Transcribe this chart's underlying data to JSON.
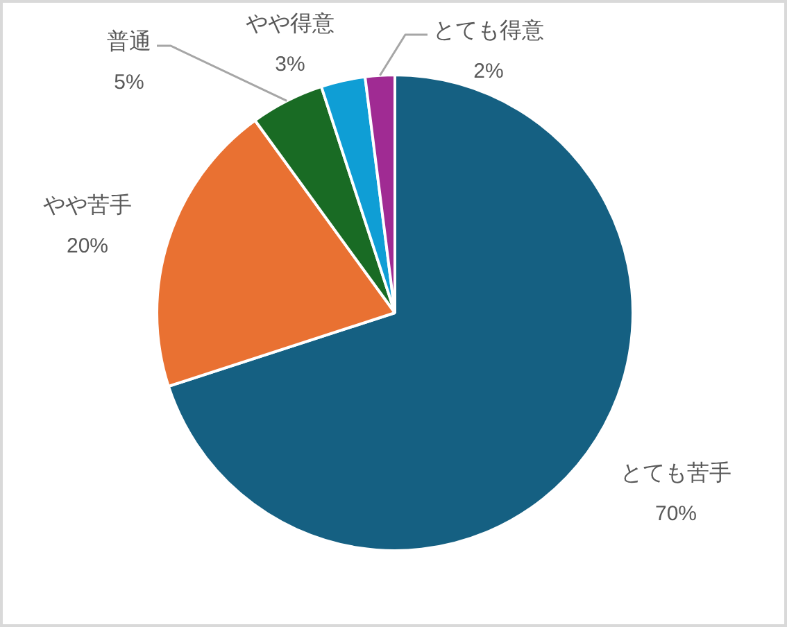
{
  "chart_data": {
    "type": "pie",
    "categories": [
      "とても苦手",
      "やや苦手",
      "普通",
      "やや得意",
      "とても得意"
    ],
    "values": [
      70,
      20,
      5,
      3,
      2
    ],
    "colors": [
      "#156082",
      "#e97132",
      "#196b24",
      "#0f9ed5",
      "#a02b93"
    ],
    "value_labels": [
      "70%",
      "20%",
      "5%",
      "3%",
      "2%"
    ]
  }
}
